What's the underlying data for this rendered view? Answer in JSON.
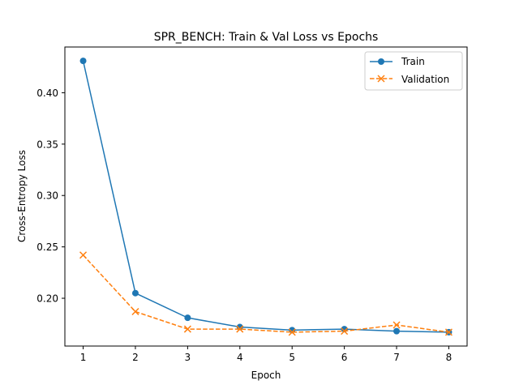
{
  "chart_data": {
    "type": "line",
    "title": "SPR_BENCH: Train & Val Loss vs Epochs",
    "xlabel": "Epoch",
    "ylabel": "Cross-Entropy Loss",
    "x": [
      1,
      2,
      3,
      4,
      5,
      6,
      7,
      8
    ],
    "xlim": [
      0.65,
      8.35
    ],
    "ylim": [
      0.1535,
      0.4445
    ],
    "xticks": [
      "1",
      "2",
      "3",
      "4",
      "5",
      "6",
      "7",
      "8"
    ],
    "yticks": [
      "0.20",
      "0.25",
      "0.30",
      "0.35",
      "0.40"
    ],
    "ytick_values": [
      0.2,
      0.25,
      0.3,
      0.35,
      0.4
    ],
    "grid": false,
    "legend_position": "top-right",
    "series": [
      {
        "name": "Train",
        "values": [
          0.431,
          0.205,
          0.181,
          0.172,
          0.169,
          0.17,
          0.168,
          0.167
        ],
        "color": "#1f77b4",
        "marker": "circle",
        "linestyle": "solid"
      },
      {
        "name": "Validation",
        "values": [
          0.242,
          0.187,
          0.17,
          0.17,
          0.167,
          0.168,
          0.174,
          0.167
        ],
        "color": "#ff7f0e",
        "marker": "x",
        "linestyle": "dashed"
      }
    ]
  }
}
